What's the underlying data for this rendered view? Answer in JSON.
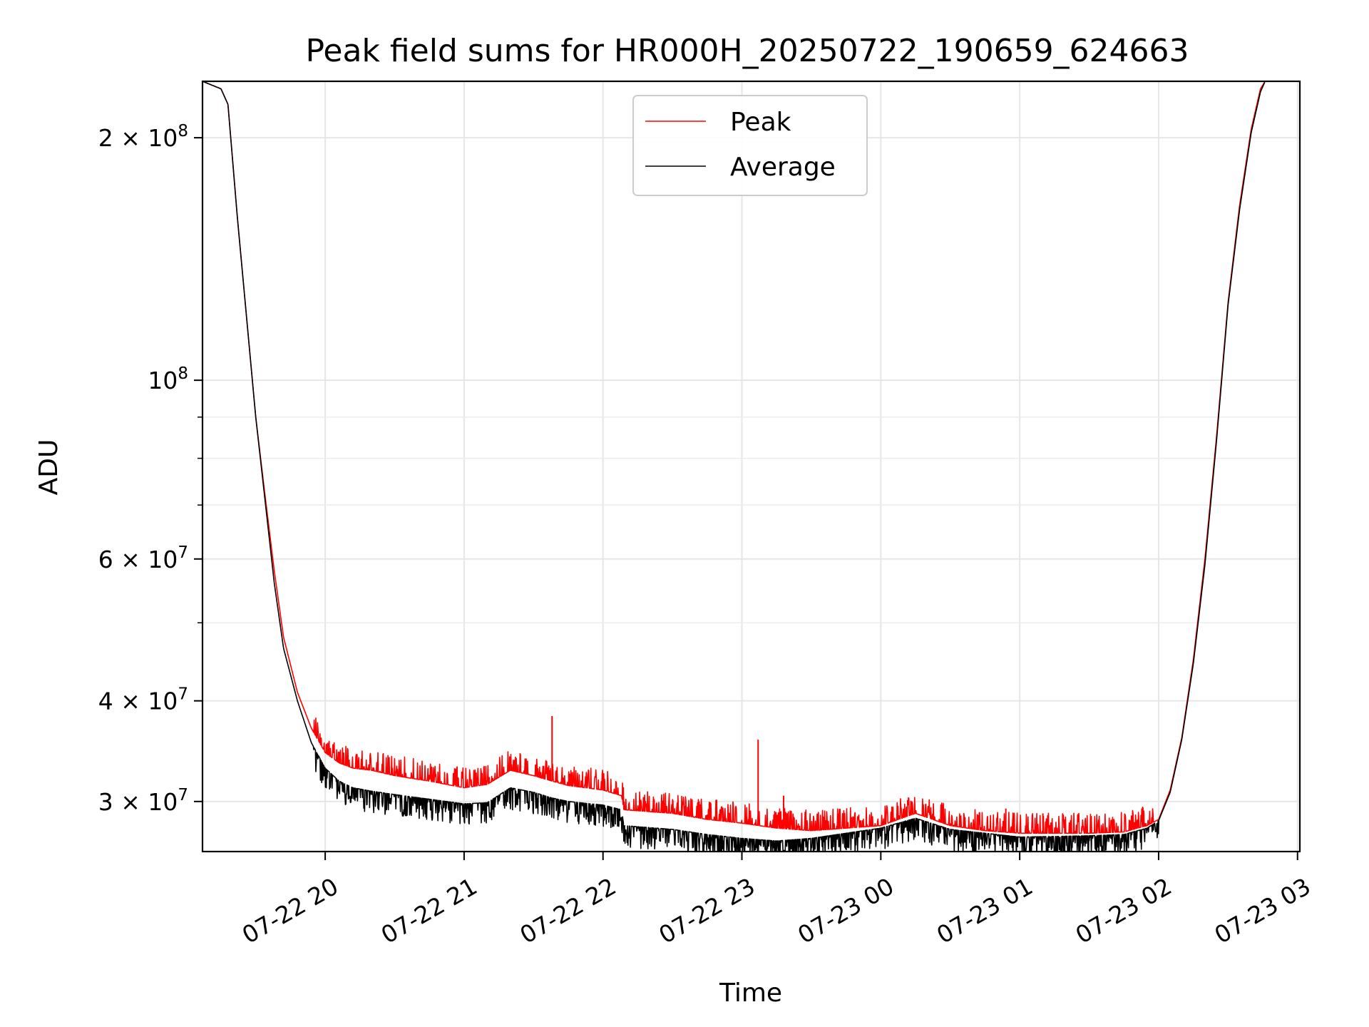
{
  "chart_data": {
    "type": "line",
    "title": "Peak field sums for HR000H_20250722_190659_624663",
    "xlabel": "Time",
    "ylabel": "ADU",
    "yscale": "log",
    "xlim": [
      "07-22 19:07",
      "07-23 03:01"
    ],
    "ylim": [
      26000000,
      235000000
    ],
    "grid": true,
    "legend_position": "top-center",
    "x_ticks": [
      "07-22 20",
      "07-22 21",
      "07-22 22",
      "07-22 23",
      "07-23 00",
      "07-23 01",
      "07-23 02",
      "07-23 03"
    ],
    "y_tick_labels": [
      {
        "value": 200000000,
        "base": "2 × 10",
        "exp": "8"
      },
      {
        "value": 100000000,
        "base": "10",
        "exp": "8"
      },
      {
        "value": 60000000,
        "base": "6 × 10",
        "exp": "7"
      },
      {
        "value": 40000000,
        "base": "4 × 10",
        "exp": "7"
      },
      {
        "value": 30000000,
        "base": "3 × 10",
        "exp": "7"
      }
    ],
    "y_minor_ticks": [
      50000000,
      70000000,
      80000000,
      90000000
    ],
    "series": [
      {
        "name": "Peak",
        "color": "#ff0000",
        "x": [
          "07-22 19:07",
          "07-22 19:15",
          "07-22 19:18",
          "07-22 19:22",
          "07-22 19:26",
          "07-22 19:30",
          "07-22 19:34",
          "07-22 19:38",
          "07-22 19:42",
          "07-22 19:48",
          "07-22 19:54",
          "07-22 20:00",
          "07-22 20:06",
          "07-22 20:12",
          "07-22 20:20",
          "07-22 20:30",
          "07-22 20:45",
          "07-22 21:00",
          "07-22 21:10",
          "07-22 21:20",
          "07-22 21:30",
          "07-22 21:38",
          "07-22 21:45",
          "07-22 22:00",
          "07-22 22:08",
          "07-22 22:09",
          "07-22 22:30",
          "07-22 22:45",
          "07-22 23:00",
          "07-22 23:15",
          "07-22 23:30",
          "07-22 23:45",
          "07-23 00:00",
          "07-23 00:15",
          "07-23 00:30",
          "07-23 00:45",
          "07-23 01:00",
          "07-23 01:30",
          "07-23 01:45",
          "07-23 01:55",
          "07-23 02:00",
          "07-23 02:05",
          "07-23 02:10",
          "07-23 02:15",
          "07-23 02:20",
          "07-23 02:25",
          "07-23 02:30",
          "07-23 02:35",
          "07-23 02:40",
          "07-23 02:44",
          "07-23 02:46"
        ],
        "values": [
          235000000,
          230000000,
          220000000,
          160000000,
          120000000,
          90000000,
          72000000,
          58000000,
          48000000,
          41000000,
          37000000,
          34500000,
          33500000,
          33000000,
          32800000,
          32300000,
          31800000,
          31200000,
          31500000,
          32800000,
          32300000,
          31800000,
          31400000,
          31000000,
          30500000,
          29300000,
          29000000,
          28500000,
          28200000,
          27800000,
          27600000,
          27800000,
          28000000,
          29000000,
          28000000,
          27600000,
          27400000,
          27400000,
          27500000,
          28000000,
          28500000,
          31000000,
          36000000,
          45000000,
          60000000,
          85000000,
          125000000,
          165000000,
          205000000,
          230000000,
          235000000
        ],
        "spikes": [
          {
            "x": "07-22 21:38",
            "y": 38300000
          },
          {
            "x": "07-22 23:07",
            "y": 35800000
          },
          {
            "x": "07-22 23:18",
            "y": 30500000
          },
          {
            "x": "07-23 00:54",
            "y": 29400000
          },
          {
            "x": "07-23 01:10",
            "y": 29000000
          }
        ]
      },
      {
        "name": "Average",
        "color": "#000000",
        "x": [
          "07-22 19:07",
          "07-22 19:15",
          "07-22 19:18",
          "07-22 19:22",
          "07-22 19:26",
          "07-22 19:30",
          "07-22 19:34",
          "07-22 19:38",
          "07-22 19:42",
          "07-22 19:48",
          "07-22 19:54",
          "07-22 20:00",
          "07-22 20:06",
          "07-22 20:12",
          "07-22 20:20",
          "07-22 20:30",
          "07-22 20:45",
          "07-22 21:00",
          "07-22 21:10",
          "07-22 21:20",
          "07-22 21:30",
          "07-22 21:38",
          "07-22 21:45",
          "07-22 22:00",
          "07-22 22:08",
          "07-22 22:09",
          "07-22 22:30",
          "07-22 22:45",
          "07-22 23:00",
          "07-22 23:15",
          "07-22 23:30",
          "07-22 23:45",
          "07-23 00:00",
          "07-23 00:15",
          "07-23 00:30",
          "07-23 00:45",
          "07-23 01:00",
          "07-23 01:30",
          "07-23 01:45",
          "07-23 01:55",
          "07-23 02:00",
          "07-23 02:05",
          "07-23 02:10",
          "07-23 02:15",
          "07-23 02:20",
          "07-23 02:25",
          "07-23 02:30",
          "07-23 02:35",
          "07-23 02:40",
          "07-23 02:44",
          "07-23 02:46"
        ],
        "values": [
          235000000,
          230000000,
          220000000,
          160000000,
          120000000,
          90000000,
          71000000,
          56000000,
          46500000,
          40000000,
          35500000,
          33000000,
          31800000,
          31200000,
          30900000,
          30600000,
          30200000,
          29800000,
          29900000,
          31200000,
          30800000,
          30300000,
          30000000,
          29700000,
          29300000,
          28000000,
          27700000,
          27300000,
          27000000,
          26800000,
          27000000,
          27400000,
          27800000,
          28600000,
          27700000,
          27400000,
          27100000,
          27200000,
          27300000,
          27800000,
          28400000,
          30800000,
          35800000,
          44500000,
          59000000,
          84000000,
          124000000,
          163000000,
          203000000,
          228000000,
          235000000
        ],
        "dips": [
          {
            "x": "07-22 23:15",
            "y": 26200000
          },
          {
            "x": "07-23 01:26",
            "y": 26000000
          },
          {
            "x": "07-23 01:37",
            "y": 26500000
          }
        ]
      }
    ]
  }
}
